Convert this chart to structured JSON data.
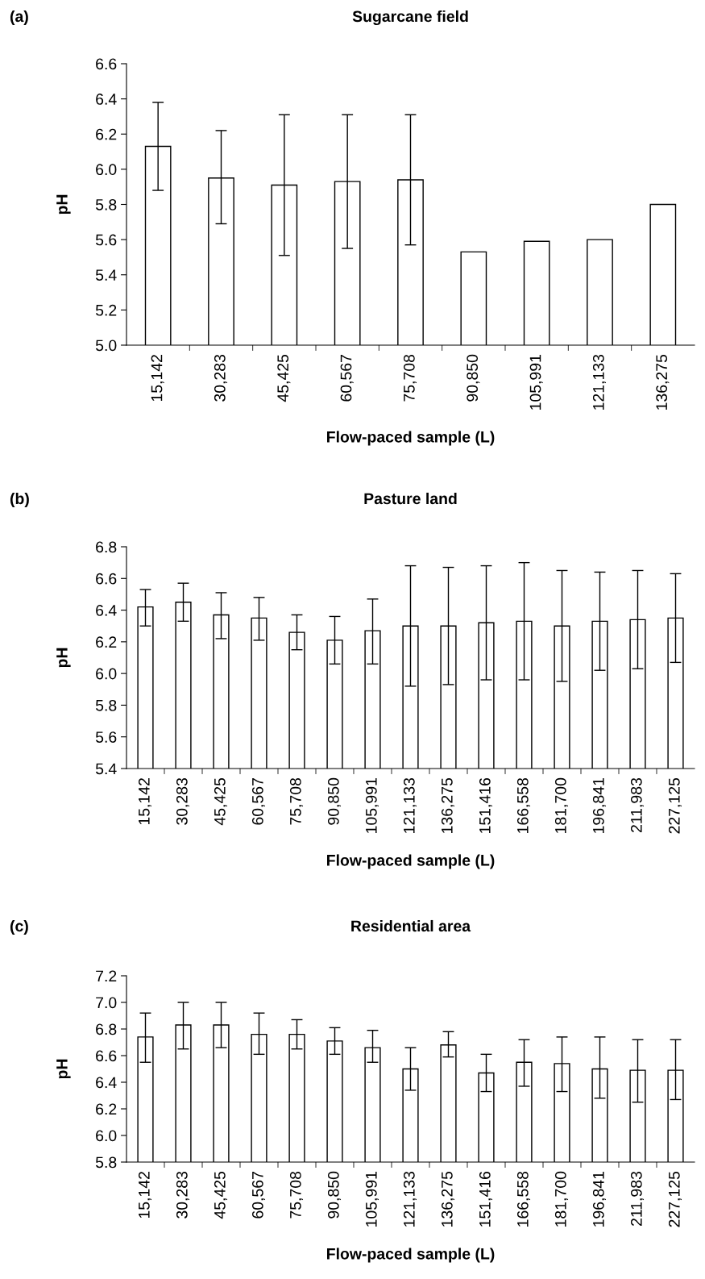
{
  "chart_data": [
    {
      "type": "bar",
      "title": "Sugarcane field",
      "xlabel": "Flow-paced sample (L)",
      "ylabel": "pH",
      "annotations": [
        "(a)"
      ],
      "categories": [
        "15,142",
        "30,283",
        "45,425",
        "60,567",
        "75,708",
        "90,850",
        "105,991",
        "121,133",
        "136,275"
      ],
      "values": [
        6.13,
        5.95,
        5.91,
        5.93,
        5.94,
        5.53,
        5.59,
        5.6,
        5.8
      ],
      "errors": [
        [
          5.88,
          6.38
        ],
        [
          5.69,
          6.22
        ],
        [
          5.51,
          6.31
        ],
        [
          5.55,
          6.31
        ],
        [
          5.57,
          6.31
        ],
        null,
        null,
        null,
        null
      ],
      "color": "#ffffff",
      "ylim": [
        5.0,
        6.6
      ],
      "yticks": [
        {
          "value": 5.0,
          "label": "5.0"
        },
        5.2,
        5.4,
        5.6,
        5.8,
        {
          "value": 6.0,
          "label": "6.0"
        },
        6.2,
        6.4,
        6.6
      ],
      "grid": false,
      "legend": false
    },
    {
      "type": "bar",
      "title": "Pasture land",
      "xlabel": "Flow-paced sample (L)",
      "ylabel": "pH",
      "annotations": [
        "(b)"
      ],
      "categories": [
        "15,142",
        "30,283",
        "45,425",
        "60,567",
        "75,708",
        "90,850",
        "105,991",
        "121,133",
        "136,275",
        "151,416",
        "166,558",
        "181,700",
        "196,841",
        "211,983",
        "227,125"
      ],
      "values": [
        6.42,
        6.45,
        6.37,
        6.35,
        6.26,
        6.21,
        6.27,
        6.3,
        6.3,
        6.32,
        6.33,
        6.3,
        6.33,
        6.34,
        6.35
      ],
      "errors": [
        [
          6.3,
          6.53
        ],
        [
          6.33,
          6.57
        ],
        [
          6.22,
          6.51
        ],
        [
          6.21,
          6.48
        ],
        [
          6.15,
          6.37
        ],
        [
          6.06,
          6.36
        ],
        [
          6.06,
          6.47
        ],
        [
          5.92,
          6.68
        ],
        [
          5.93,
          6.67
        ],
        [
          5.96,
          6.68
        ],
        [
          5.96,
          6.7
        ],
        [
          5.95,
          6.65
        ],
        [
          6.02,
          6.64
        ],
        [
          6.03,
          6.65
        ],
        [
          6.07,
          6.63
        ]
      ],
      "color": "#ffffff",
      "ylim": [
        5.4,
        6.8
      ],
      "yticks": [
        5.4,
        5.6,
        5.8,
        {
          "value": 6.0,
          "label": "6.0"
        },
        6.2,
        6.4,
        6.6,
        6.8
      ],
      "grid": false,
      "legend": false
    },
    {
      "type": "bar",
      "title": "Residential area",
      "xlabel": "Flow-paced sample (L)",
      "ylabel": "pH",
      "annotations": [
        "(c)"
      ],
      "categories": [
        "15,142",
        "30,283",
        "45,425",
        "60,567",
        "75,708",
        "90,850",
        "105,991",
        "121,133",
        "136,275",
        "151,416",
        "166,558",
        "181,700",
        "196,841",
        "211,983",
        "227,125"
      ],
      "values": [
        6.74,
        6.83,
        6.83,
        6.76,
        6.76,
        6.71,
        6.66,
        6.5,
        6.68,
        6.47,
        6.55,
        6.54,
        6.5,
        6.49,
        6.49
      ],
      "errors": [
        [
          6.55,
          6.92
        ],
        [
          6.65,
          7.0
        ],
        [
          6.66,
          7.0
        ],
        [
          6.61,
          6.92
        ],
        [
          6.65,
          6.87
        ],
        [
          6.61,
          6.81
        ],
        [
          6.55,
          6.79
        ],
        [
          6.34,
          6.66
        ],
        [
          6.59,
          6.78
        ],
        [
          6.33,
          6.61
        ],
        [
          6.37,
          6.72
        ],
        [
          6.33,
          6.74
        ],
        [
          6.28,
          6.74
        ],
        [
          6.25,
          6.72
        ],
        [
          6.27,
          6.72
        ]
      ],
      "color": "#ffffff",
      "ylim": [
        5.8,
        7.2
      ],
      "yticks": [
        5.8,
        {
          "value": 6.0,
          "label": "6.0"
        },
        6.2,
        6.4,
        6.6,
        6.8,
        {
          "value": 7.0,
          "label": "7.0"
        },
        7.2
      ],
      "grid": false,
      "legend": false
    }
  ]
}
